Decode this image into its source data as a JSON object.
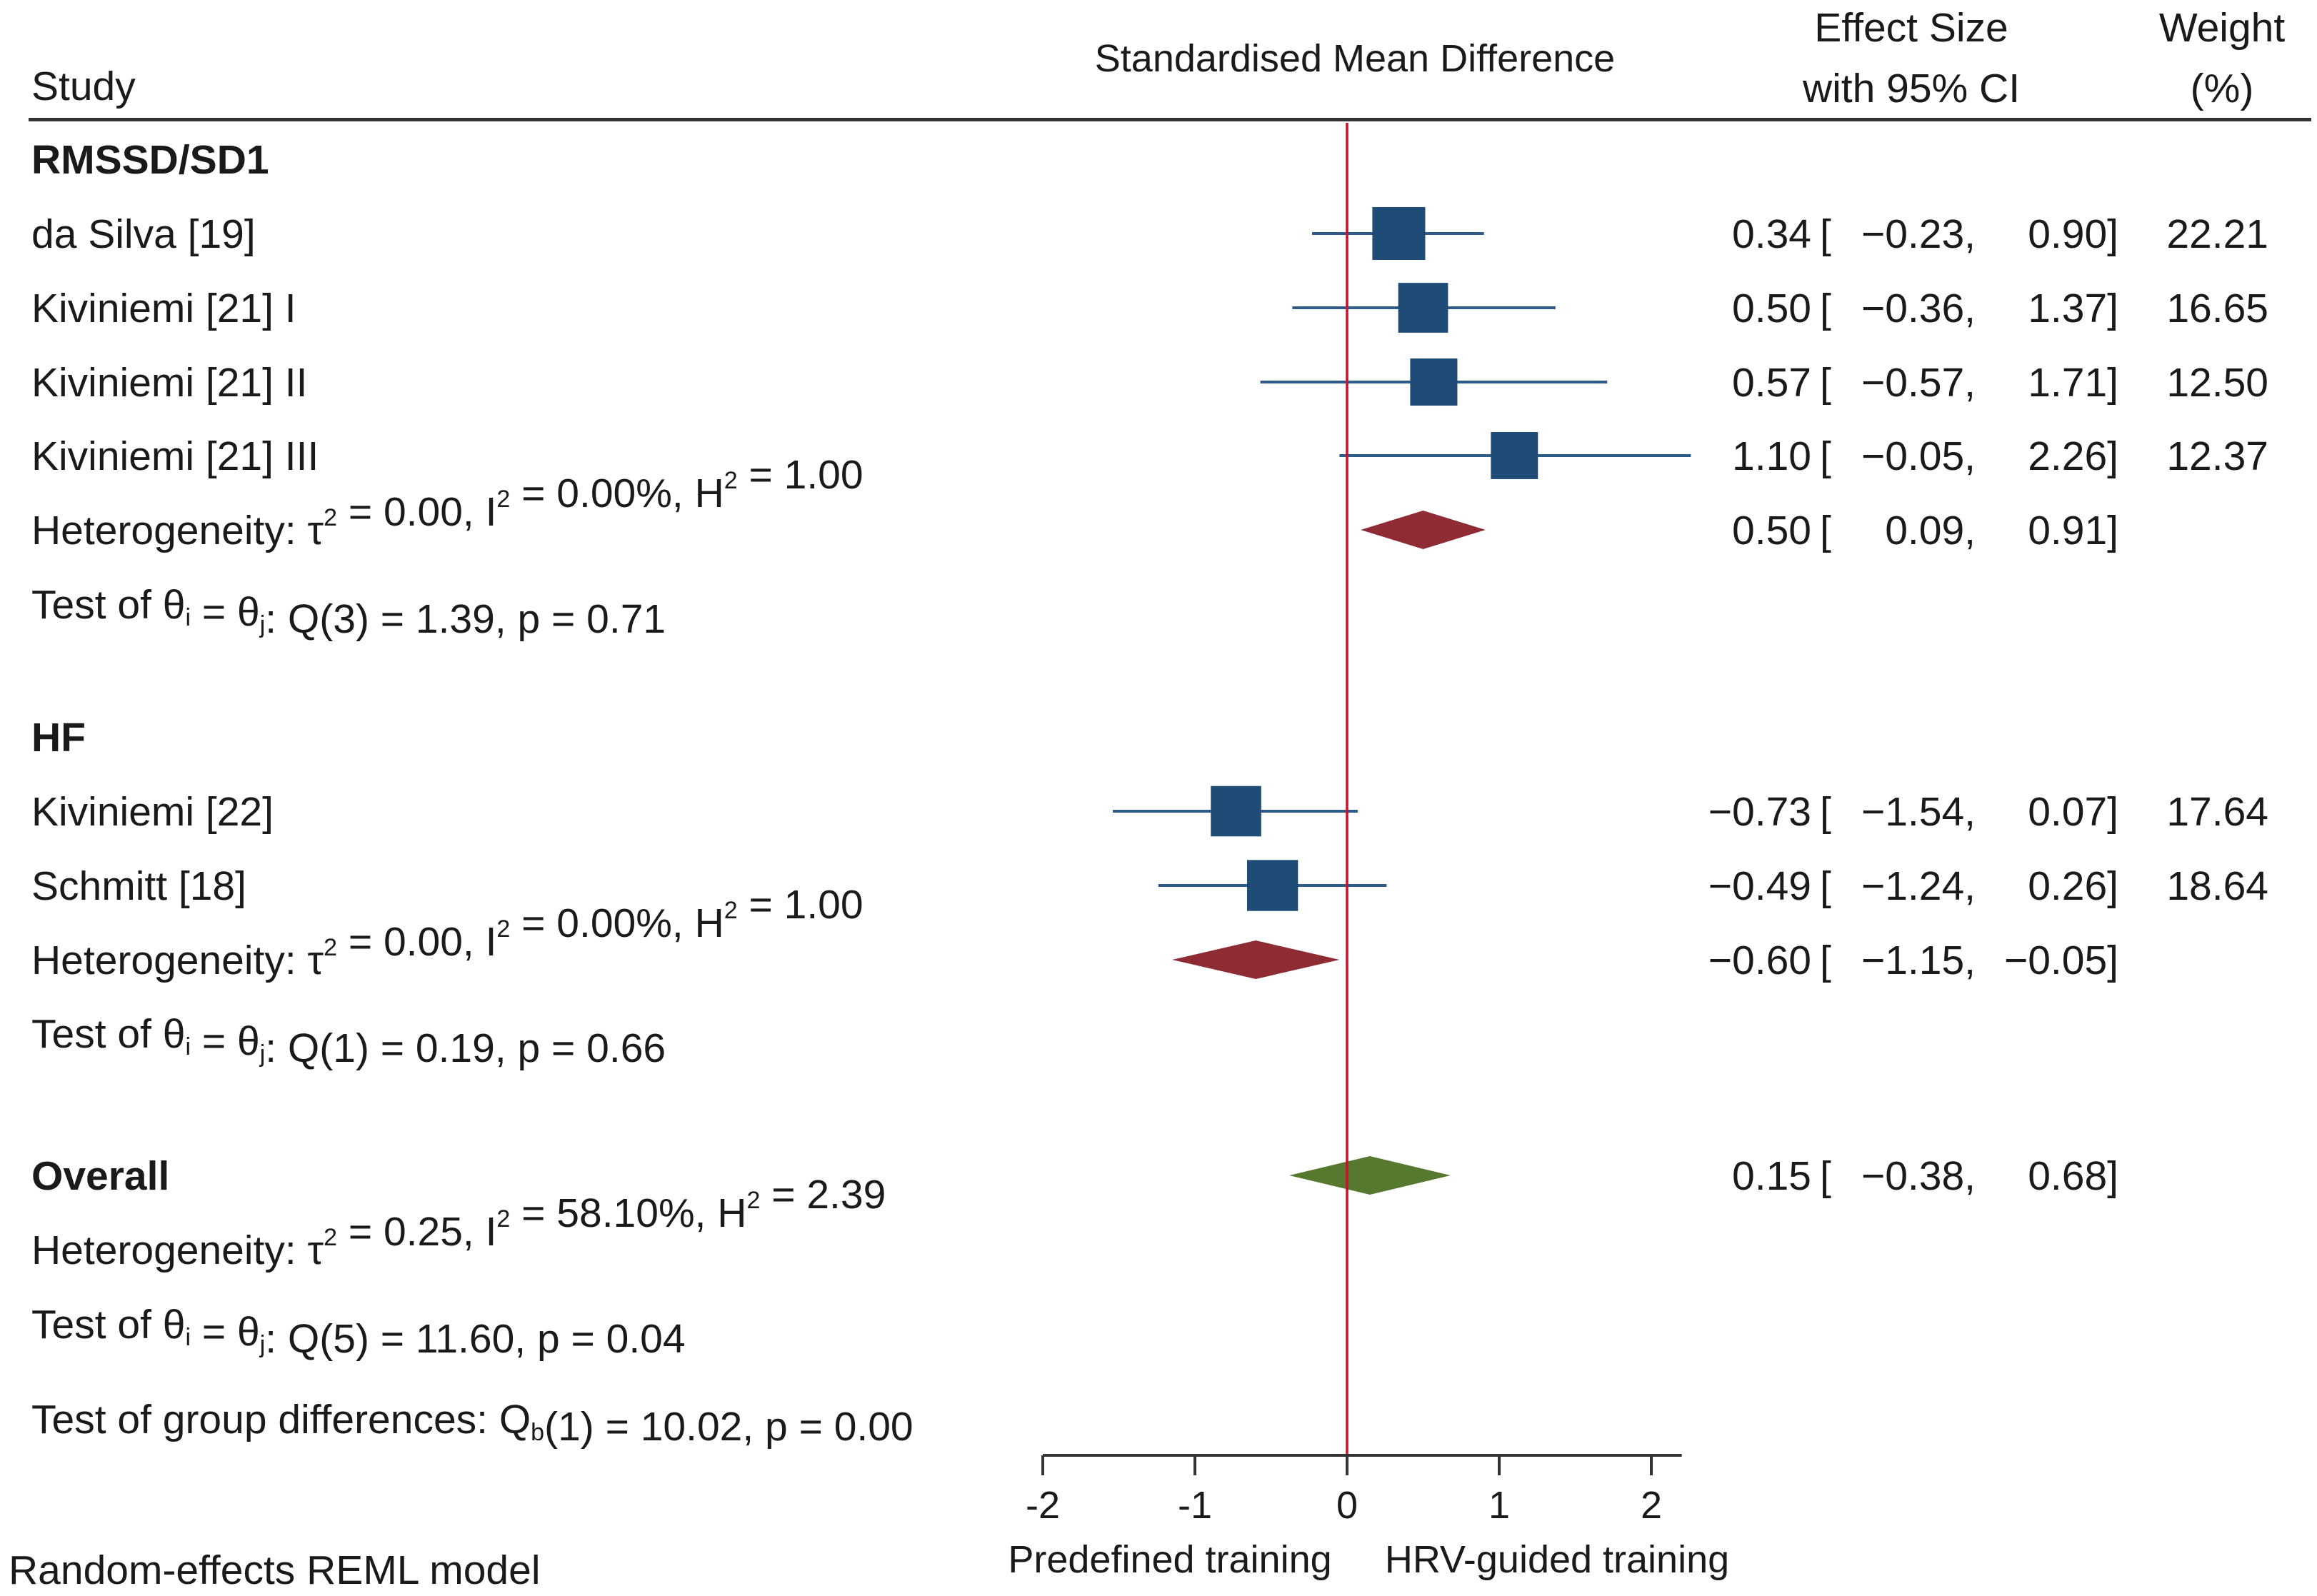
{
  "header": {
    "study": "Study",
    "smd": "Standardised Mean Difference",
    "es_line1": "Effect Size",
    "es_line2": "with 95% CI",
    "w_line1": "Weight",
    "w_line2": "(%)"
  },
  "footer": {
    "model": "Random-effects REML model",
    "left_label": "Predefined training",
    "right_label": "HRV-guided training"
  },
  "colors": {
    "study_box": "#1F4C77",
    "ci_line": "#2E5C8A",
    "subgroup_diamond": "#8E2B35",
    "overall_diamond": "#56782F",
    "null_line": "#C8102E",
    "axis": "#333333"
  },
  "chart_data": {
    "type": "forest",
    "title": "Standardised Mean Difference",
    "xlabel_left": "Predefined training",
    "xlabel_right": "HRV-guided training",
    "xlim": [
      -2,
      2.2
    ],
    "xticks": [
      -2,
      -1,
      0,
      1,
      2
    ],
    "null_value": 0,
    "groups": [
      {
        "name": "RMSSD/SD1",
        "studies": [
          {
            "label": "da Silva [19]",
            "es": 0.34,
            "lo": -0.23,
            "hi": 0.9,
            "es_text": "0.34",
            "lo_text": "−0.23,",
            "hi_text": "0.90]",
            "weight": 22.21,
            "weight_text": "22.21"
          },
          {
            "label": "Kiviniemi [21] I",
            "es": 0.5,
            "lo": -0.36,
            "hi": 1.37,
            "es_text": "0.50",
            "lo_text": "−0.36,",
            "hi_text": "1.37]",
            "weight": 16.65,
            "weight_text": "16.65"
          },
          {
            "label": "Kiviniemi [21] II",
            "es": 0.57,
            "lo": -0.57,
            "hi": 1.71,
            "es_text": "0.57",
            "lo_text": "−0.57,",
            "hi_text": "1.71]",
            "weight": 12.5,
            "weight_text": "12.50"
          },
          {
            "label": "Kiviniemi [21] III",
            "es": 1.1,
            "lo": -0.05,
            "hi": 2.26,
            "es_text": "1.10",
            "lo_text": "−0.05,",
            "hi_text": "2.26]",
            "weight": 12.37,
            "weight_text": "12.37"
          }
        ],
        "pooled": {
          "es": 0.5,
          "lo": 0.09,
          "hi": 0.91,
          "es_text": "0.50",
          "lo_text": "0.09,",
          "hi_text": "0.91]"
        },
        "heterogeneity": {
          "tau2": "0.00",
          "i2": "0.00%",
          "h2": "1.00"
        },
        "test": {
          "df": "3",
          "q": "1.39",
          "p": "0.71"
        }
      },
      {
        "name": "HF",
        "studies": [
          {
            "label": "Kiviniemi [22]",
            "es": -0.73,
            "lo": -1.54,
            "hi": 0.07,
            "es_text": "−0.73",
            "lo_text": "−1.54,",
            "hi_text": "0.07]",
            "weight": 17.64,
            "weight_text": "17.64"
          },
          {
            "label": "Schmitt [18]",
            "es": -0.49,
            "lo": -1.24,
            "hi": 0.26,
            "es_text": "−0.49",
            "lo_text": "−1.24,",
            "hi_text": "0.26]",
            "weight": 18.64,
            "weight_text": "18.64"
          }
        ],
        "pooled": {
          "es": -0.6,
          "lo": -1.15,
          "hi": -0.05,
          "es_text": "−0.60",
          "lo_text": "−1.15,",
          "hi_text": "−0.05]"
        },
        "heterogeneity": {
          "tau2": "0.00",
          "i2": "0.00%",
          "h2": "1.00"
        },
        "test": {
          "df": "1",
          "q": "0.19",
          "p": "0.66"
        }
      }
    ],
    "overall": {
      "name": "Overall",
      "es": 0.15,
      "lo": -0.38,
      "hi": 0.68,
      "es_text": "0.15",
      "lo_text": "−0.38,",
      "hi_text": "0.68]",
      "heterogeneity": {
        "tau2": "0.25",
        "i2": "58.10%",
        "h2": "2.39"
      },
      "test": {
        "df": "5",
        "q": "11.60",
        "p": "0.04"
      }
    },
    "group_diff": {
      "df": "1",
      "q": "10.02",
      "p": "0.00"
    }
  }
}
